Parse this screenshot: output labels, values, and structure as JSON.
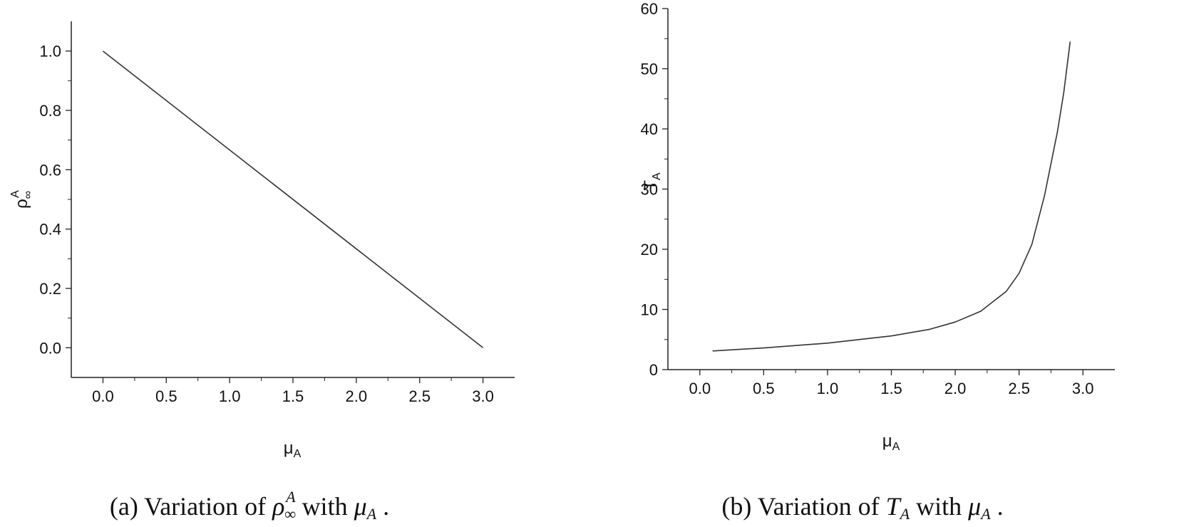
{
  "chart_data": [
    {
      "type": "line",
      "xlabel": "μ",
      "xlabel_sub": "A",
      "ylabel": "ρ",
      "ylabel_sub": "∞",
      "ylabel_sup": "A",
      "xlim": [
        -0.25,
        3.25
      ],
      "ylim": [
        -0.1,
        1.1
      ],
      "xticks": [
        "0.0",
        "0.5",
        "1.0",
        "1.5",
        "2.0",
        "2.5",
        "3.0"
      ],
      "yticks": [
        "0.0",
        "0.2",
        "0.4",
        "0.6",
        "0.8",
        "1.0"
      ],
      "series": [
        {
          "x": [
            0.0,
            3.0
          ],
          "y": [
            1.0,
            0.0
          ]
        }
      ],
      "caption": {
        "prefix": "(a) Variation of",
        "sym": "ρ",
        "sym_sub": "∞",
        "sym_sup": "A",
        "mid": "with",
        "var": "μ",
        "var_sub": "A",
        "end": "."
      }
    },
    {
      "type": "line",
      "xlabel": "μ",
      "xlabel_sub": "A",
      "ylabel": "T",
      "ylabel_sub": "A",
      "xlim": [
        -0.25,
        3.25
      ],
      "ylim": [
        0,
        60
      ],
      "xticks": [
        "0.0",
        "0.5",
        "1.0",
        "1.5",
        "2.0",
        "2.5",
        "3.0"
      ],
      "yticks": [
        "0",
        "10",
        "20",
        "30",
        "40",
        "50",
        "60"
      ],
      "series": [
        {
          "x": [
            0.1,
            0.5,
            1.0,
            1.5,
            1.8,
            2.0,
            2.2,
            2.4,
            2.5,
            2.6,
            2.7,
            2.8,
            2.85,
            2.9
          ],
          "y": [
            3.1,
            3.6,
            4.4,
            5.6,
            6.7,
            7.9,
            9.7,
            13.0,
            16.0,
            20.8,
            29.0,
            39.5,
            46.0,
            54.5
          ]
        }
      ],
      "caption": {
        "prefix": "(b) Variation of",
        "sym": "T",
        "sym_sub": "A",
        "mid": "with",
        "var": "μ",
        "var_sub": "A",
        "end": "."
      }
    }
  ]
}
